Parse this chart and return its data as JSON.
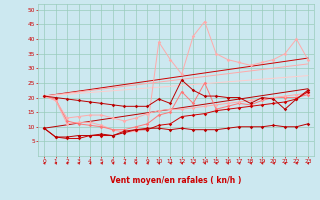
{
  "background_color": "#cce8f0",
  "grid_color": "#99ccbb",
  "xlabel": "Vent moyen/en rafales ( kn/h )",
  "xlabel_color": "#cc0000",
  "tick_color": "#cc0000",
  "axis_color": "#cc0000",
  "xlim": [
    -0.5,
    23.5
  ],
  "ylim": [
    0,
    52
  ],
  "xticks": [
    0,
    1,
    2,
    3,
    4,
    5,
    6,
    7,
    8,
    9,
    10,
    11,
    12,
    13,
    14,
    15,
    16,
    17,
    18,
    19,
    20,
    21,
    22,
    23
  ],
  "yticks": [
    5,
    10,
    15,
    20,
    25,
    30,
    35,
    40,
    45,
    50
  ],
  "line1_y": [
    9.5,
    6.5,
    6.5,
    7,
    7,
    7.5,
    7,
    8,
    9,
    9.5,
    9.5,
    9,
    9.5,
    9,
    9,
    9,
    9.5,
    10,
    10,
    10,
    10.5,
    10,
    10,
    11
  ],
  "line1_color": "#bb0000",
  "line2_y": [
    20.5,
    20,
    19.5,
    19,
    18.5,
    18,
    17.5,
    17,
    17,
    17,
    19.5,
    18,
    26,
    22.5,
    20.5,
    20.5,
    20,
    20,
    18,
    20,
    19.5,
    16,
    19.5,
    22.5
  ],
  "line2_color": "#bb0000",
  "line3_y": [
    20.5,
    19,
    13,
    13.5,
    14,
    14,
    13,
    12,
    13,
    14.5,
    15.5,
    16,
    16,
    16.5,
    17,
    17.5,
    18,
    18.5,
    19,
    19.5,
    20,
    20.5,
    21,
    21.5
  ],
  "line3_color": "#ffaaaa",
  "line4_y": [
    20.5,
    19.5,
    12,
    11,
    10.5,
    10,
    9,
    9,
    10,
    11,
    14,
    15,
    22,
    18,
    25,
    16,
    17,
    18,
    17.5,
    19,
    20,
    20,
    20,
    21
  ],
  "line4_color": "#ff7777",
  "line5_y": [
    20.5,
    19,
    11,
    11.5,
    11.5,
    10.5,
    9,
    8,
    8.5,
    9.5,
    39,
    33,
    28,
    41,
    46,
    35,
    33,
    32,
    31,
    32,
    33,
    35,
    40,
    33
  ],
  "line5_color": "#ffaaaa",
  "line6_y": [
    9.5,
    6.5,
    6,
    6,
    7,
    7,
    7,
    8.5,
    9,
    9,
    10.5,
    11,
    13.5,
    14,
    14.5,
    15.5,
    16,
    16.5,
    17,
    17.5,
    18,
    18.5,
    19.5,
    22
  ],
  "line6_color": "#cc0000",
  "trend1_y": [
    9.5,
    23.0
  ],
  "trend1_color": "#bb0000",
  "trend2_y": [
    20.5,
    33.5
  ],
  "trend2_color": "#cc0000",
  "trend3_y": [
    20.5,
    31.5
  ],
  "trend3_color": "#ffaaaa",
  "trend4_y": [
    20.5,
    27.5
  ],
  "trend4_color": "#ffcccc"
}
